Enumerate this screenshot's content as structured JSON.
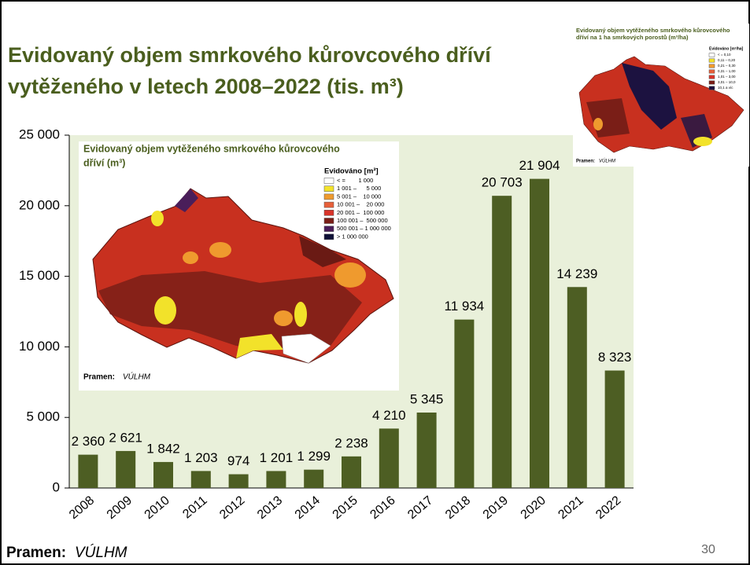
{
  "slide": {
    "title_lines": [
      "Evidovaný objem smrkového kůrovcového dříví",
      "vytěženého v letech 2008–2022 (tis. m³)"
    ],
    "source_label": "Pramen:",
    "source_name": "VÚLHM",
    "page": "30"
  },
  "chart_data": {
    "type": "bar",
    "categories": [
      "2008",
      "2009",
      "2010",
      "2011",
      "2012",
      "2013",
      "2014",
      "2015",
      "2016",
      "2017",
      "2018",
      "2019",
      "2020",
      "2021",
      "2022"
    ],
    "values": [
      2360,
      2621,
      1842,
      1203,
      974,
      1201,
      1299,
      2238,
      4210,
      5345,
      11934,
      20703,
      21904,
      14239,
      8323
    ],
    "value_labels": [
      "2 360",
      "2 621",
      "1 842",
      "1 203",
      "974",
      "1 201",
      "1 299",
      "2 238",
      "4 210",
      "5 345",
      "11 934",
      "20 703",
      "21 904",
      "14 239",
      "8 323"
    ],
    "color": "#4d5e23",
    "ylim": [
      0,
      25000
    ],
    "yticks": [
      0,
      {
        "value": 5000,
        "label": "5 000"
      },
      {
        "value": 10000,
        "label": "10 000"
      },
      {
        "value": 15000,
        "label": "15 000"
      },
      {
        "value": 20000,
        "label": "20 000"
      },
      {
        "value": 25000,
        "label": "25 000"
      }
    ]
  },
  "maps": [
    {
      "title_lines": [
        "Evidovaný objem vytěženého smrkového kůrovcového",
        "dříví (m³)"
      ],
      "legend_title": "Evidováno [m³]",
      "legend": [
        {
          "label": "< =        1 000",
          "color": "#ffffff"
        },
        {
          "label": "1 001 –      5 000",
          "color": "#f2e22a"
        },
        {
          "label": "5 001 –    10 000",
          "color": "#ef9a2e"
        },
        {
          "label": "10 001 –    20 000",
          "color": "#e7603a"
        },
        {
          "label": "20 001 –  100 000",
          "color": "#d8342a"
        },
        {
          "label": "100 001 –  500 000",
          "color": "#7a1e17"
        },
        {
          "label": "500 001 – 1 000 000",
          "color": "#4a1e5a"
        },
        {
          "label": "> 1 000 000",
          "color": "#0e1036"
        }
      ],
      "source_label": "Pramen:",
      "source_name": "VÚLHM"
    },
    {
      "title_lines": [
        "Evidovaný objem vytěženého smrkového kůrovcového",
        "dříví na 1 ha smrkových porostů (m³/ha)"
      ],
      "legend_title": "Evidováno [m³/ha]",
      "legend": [
        {
          "label": "< = 0,10",
          "color": "#ffffff"
        },
        {
          "label": "0,11 – 0,20",
          "color": "#f2e22a"
        },
        {
          "label": "0,21 – 0,30",
          "color": "#ef9a2e"
        },
        {
          "label": "0,31 – 1,00",
          "color": "#e7603a"
        },
        {
          "label": "1,01 – 3,00",
          "color": "#d8342a"
        },
        {
          "label": "3,01 – 10,0",
          "color": "#7a1e17"
        },
        {
          "label": "10,1 a víc",
          "color": "#1c1240"
        }
      ],
      "source_label": "Pramen:",
      "source_name": "VÚLHM"
    }
  ]
}
